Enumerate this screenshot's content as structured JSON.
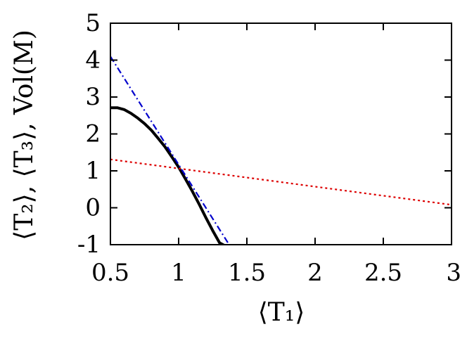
{
  "chart_data": {
    "type": "line",
    "xlabel": "⟨T₁⟩",
    "ylabel": "⟨T₂⟩, ⟨T₃⟩, Vol(M)",
    "xlim": [
      0.5,
      3
    ],
    "ylim": [
      -1,
      5
    ],
    "x_ticks": [
      "0.5",
      "1",
      "1.5",
      "2",
      "2.5",
      "3"
    ],
    "y_ticks": [
      "-1",
      "0",
      "1",
      "2",
      "3",
      "4",
      "5"
    ],
    "grid": false,
    "legend": "none",
    "series": [
      {
        "color": "#000000",
        "style": "solid",
        "x": [
          0.5,
          0.55,
          0.6,
          0.65,
          0.7,
          0.75,
          0.8,
          0.85,
          0.9,
          0.95,
          1.0,
          1.05,
          1.1,
          1.15,
          1.2,
          1.25,
          1.3,
          1.35
        ],
        "y": [
          2.71,
          2.71,
          2.66,
          2.56,
          2.43,
          2.28,
          2.1,
          1.88,
          1.65,
          1.38,
          1.1,
          0.78,
          0.45,
          0.1,
          -0.27,
          -0.62,
          -0.95,
          -1.05
        ]
      },
      {
        "color": "#0000cc",
        "style": "dashdot",
        "x": [
          0.5,
          1.37
        ],
        "y": [
          4.1,
          -1.0
        ]
      },
      {
        "color": "#dd0000",
        "style": "dotted",
        "x": [
          0.5,
          3.0
        ],
        "y": [
          1.31,
          0.08
        ]
      }
    ]
  }
}
